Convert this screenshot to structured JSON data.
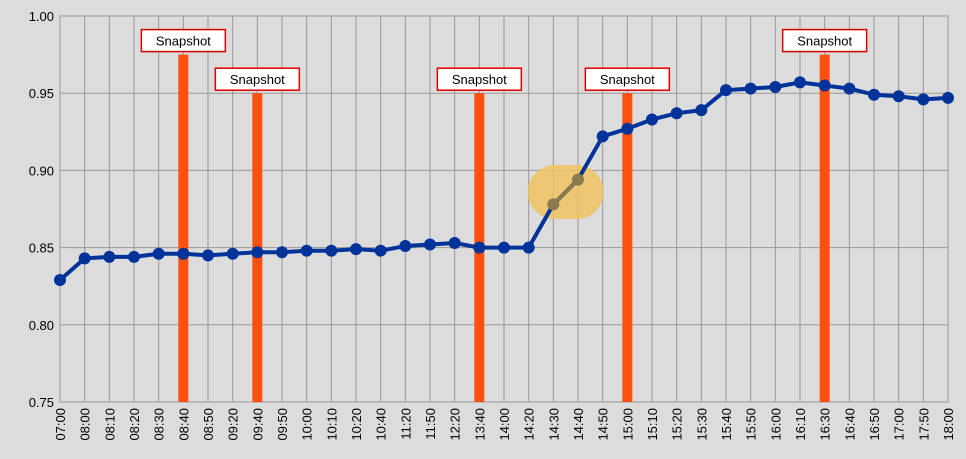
{
  "chart_data": {
    "type": "line",
    "categories": [
      "07:00",
      "08:00",
      "08:10",
      "08:20",
      "08:30",
      "08:40",
      "08:50",
      "09:20",
      "09:40",
      "09:50",
      "10:00",
      "10:10",
      "10:20",
      "10:40",
      "11:20",
      "11:50",
      "12:20",
      "13:40",
      "14:00",
      "14:20",
      "14:30",
      "14:40",
      "14:50",
      "15:00",
      "15:10",
      "15:20",
      "15:30",
      "15:40",
      "15:50",
      "16:00",
      "16:10",
      "16:30",
      "16:40",
      "16:50",
      "17:00",
      "17:50",
      "18:00"
    ],
    "series": [
      {
        "color": "#003399",
        "values": [
          0.829,
          0.843,
          0.844,
          0.844,
          0.846,
          0.846,
          0.845,
          0.846,
          0.847,
          0.847,
          0.848,
          0.848,
          0.849,
          0.848,
          0.851,
          0.852,
          0.853,
          0.85,
          0.85,
          0.85,
          0.878,
          0.894,
          0.922,
          0.927,
          0.933,
          0.937,
          0.939,
          0.952,
          0.953,
          0.954,
          0.957,
          0.955,
          0.953,
          0.949,
          0.948,
          0.946,
          0.947
        ]
      }
    ],
    "highlight": {
      "categories": [
        "14:30",
        "14:40"
      ],
      "color": "#8b7a4e",
      "halo_color": "#f2c25a"
    },
    "snapshots": {
      "color": "#ff5010",
      "items": [
        {
          "x": "08:40",
          "value": 0.975,
          "label": "Snapshot"
        },
        {
          "x": "09:40",
          "value": 0.95,
          "label": "Snapshot"
        },
        {
          "x": "13:40",
          "value": 0.95,
          "label": "Snapshot"
        },
        {
          "x": "15:00",
          "value": 0.95,
          "label": "Snapshot"
        },
        {
          "x": "16:30",
          "value": 0.975,
          "label": "Snapshot"
        }
      ]
    },
    "ylim": [
      0.75,
      1.0
    ],
    "yticks": [
      {
        "value": 0.75,
        "label": "0.75"
      },
      {
        "value": 0.8,
        "label": "0.80"
      },
      {
        "value": 0.85,
        "label": "0.85"
      },
      {
        "value": 0.9,
        "label": "0.90"
      },
      {
        "value": 0.95,
        "label": "0.95"
      },
      {
        "value": 1.0,
        "label": "1.00"
      }
    ],
    "grid": true
  }
}
